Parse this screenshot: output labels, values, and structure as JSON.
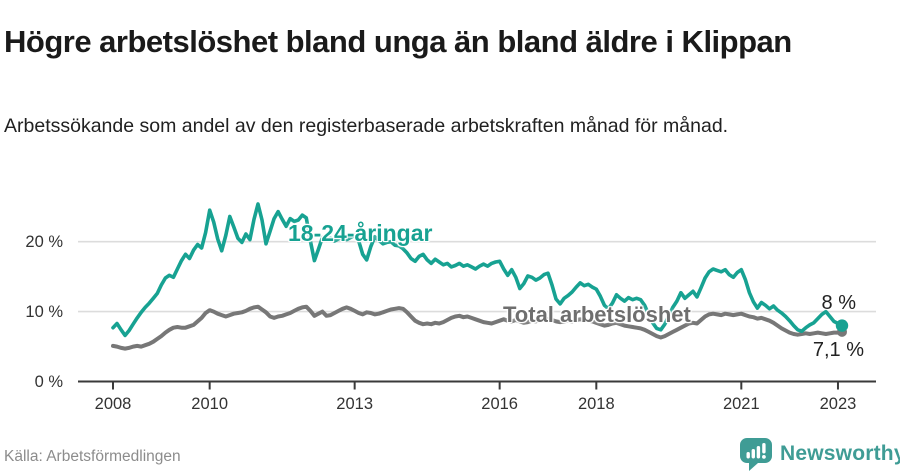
{
  "header": {
    "title": "Högre arbetslöshet bland unga än bland äldre i Klippan",
    "subtitle": "Arbetssökande som andel av den registerbaserade arbetskraften månad för månad."
  },
  "footer": {
    "source": "Källa: Arbetsförmedlingen",
    "brand": "Newsworthy"
  },
  "colors": {
    "young_line": "#17a292",
    "total_line": "#777777",
    "total_label": "#6e6e6e",
    "grid": "#dcdcdc",
    "axis": "#3a3a3a",
    "tick_text": "#333333",
    "title_text": "#1a1a1a",
    "brand_teal": "#3f9c95",
    "source_text": "#8c8c8c"
  },
  "chart_data": {
    "type": "line",
    "title": "Högre arbetslöshet bland unga än bland äldre i Klippan",
    "subtitle": "Arbetssökande som andel av den registerbaserade arbetskraften månad för månad.",
    "x_unit": "month",
    "x_start": "2008-01",
    "x_end": "2023-02",
    "ylim": [
      0,
      27
    ],
    "grid": "horizontal",
    "legend_position": "inline-labels",
    "y_ticks": [
      {
        "value": 0,
        "label": "0 %"
      },
      {
        "value": 10,
        "label": "10 %"
      },
      {
        "value": 20,
        "label": "20 %"
      }
    ],
    "x_ticks": [
      {
        "value": 2008,
        "label": "2008"
      },
      {
        "value": 2010,
        "label": "2010"
      },
      {
        "value": 2013,
        "label": "2013"
      },
      {
        "value": 2016,
        "label": "2016"
      },
      {
        "value": 2018,
        "label": "2018"
      },
      {
        "value": 2021,
        "label": "2021"
      },
      {
        "value": 2023,
        "label": "2023"
      }
    ],
    "series": [
      {
        "name": "18-24-åringar",
        "color": "#17a292",
        "end_label": "8 %",
        "end_value": 8.0,
        "values": [
          7.7,
          8.3,
          7.4,
          6.6,
          7.3,
          8.2,
          9.1,
          9.9,
          10.6,
          11.2,
          11.9,
          12.6,
          13.8,
          14.8,
          15.2,
          14.9,
          16.1,
          17.3,
          18.2,
          17.6,
          18.8,
          19.6,
          19.1,
          21.3,
          24.5,
          22.8,
          20.4,
          18.7,
          20.9,
          23.6,
          22.1,
          20.5,
          19.9,
          21.1,
          20.3,
          23.2,
          25.4,
          23.1,
          19.7,
          21.5,
          23.3,
          24.3,
          23.2,
          22.2,
          23.3,
          22.9,
          23.1,
          23.8,
          23.4,
          20.1,
          17.3,
          18.9,
          20.6,
          20.2,
          20.5,
          20.1,
          20.4,
          20.7,
          20.3,
          20.6,
          20.9,
          20.1,
          18.2,
          17.4,
          19.3,
          20.7,
          20.2,
          19.7,
          19.9,
          20.0,
          19.5,
          19.4,
          19.0,
          18.4,
          17.6,
          17.2,
          17.9,
          18.2,
          17.4,
          16.9,
          17.5,
          17.1,
          16.7,
          16.9,
          16.4,
          16.6,
          16.9,
          16.5,
          16.7,
          16.4,
          16.1,
          16.5,
          16.8,
          16.5,
          16.9,
          17.1,
          17.2,
          16.1,
          15.2,
          16.0,
          14.9,
          13.3,
          14.0,
          15.1,
          14.9,
          14.5,
          14.8,
          15.3,
          15.5,
          13.8,
          11.8,
          11.1,
          11.9,
          12.3,
          12.8,
          13.5,
          14.1,
          13.7,
          13.9,
          13.5,
          13.2,
          12.2,
          10.9,
          10.4,
          11.2,
          12.4,
          11.9,
          11.5,
          12.0,
          11.7,
          11.9,
          11.7,
          10.9,
          9.6,
          8.4,
          7.6,
          7.4,
          8.2,
          9.4,
          10.6,
          11.5,
          12.7,
          11.9,
          12.4,
          12.9,
          12.1,
          13.4,
          14.8,
          15.7,
          16.1,
          15.9,
          15.7,
          16.0,
          15.3,
          14.9,
          15.6,
          16.0,
          14.6,
          12.7,
          11.4,
          10.5,
          11.3,
          10.9,
          10.4,
          10.8,
          10.2,
          9.8,
          9.3,
          8.7,
          8.0,
          7.4,
          7.2,
          7.7,
          8.1,
          8.4,
          9.0,
          9.6,
          10.0,
          9.3,
          8.6,
          8.3,
          8.0
        ]
      },
      {
        "name": "Total arbetslöshet",
        "color": "#777777",
        "end_label": "7,1 %",
        "end_value": 7.1,
        "values": [
          5.1,
          5.0,
          4.8,
          4.7,
          4.8,
          5.0,
          5.1,
          5.0,
          5.2,
          5.4,
          5.7,
          6.1,
          6.5,
          7.0,
          7.4,
          7.7,
          7.8,
          7.7,
          7.7,
          7.9,
          8.1,
          8.6,
          9.1,
          9.8,
          10.2,
          10.0,
          9.7,
          9.5,
          9.3,
          9.5,
          9.7,
          9.8,
          9.9,
          10.1,
          10.4,
          10.6,
          10.7,
          10.3,
          9.9,
          9.3,
          9.1,
          9.3,
          9.4,
          9.6,
          9.8,
          10.1,
          10.4,
          10.6,
          10.7,
          10.1,
          9.4,
          9.7,
          10.0,
          9.4,
          9.5,
          9.8,
          10.1,
          10.4,
          10.6,
          10.4,
          10.1,
          9.8,
          9.6,
          9.9,
          9.8,
          9.6,
          9.7,
          9.9,
          10.1,
          10.3,
          10.4,
          10.5,
          10.4,
          9.9,
          9.3,
          8.7,
          8.4,
          8.2,
          8.3,
          8.2,
          8.4,
          8.3,
          8.5,
          8.8,
          9.1,
          9.3,
          9.4,
          9.2,
          9.3,
          9.1,
          8.9,
          8.7,
          8.5,
          8.4,
          8.3,
          8.5,
          8.7,
          8.9,
          8.7,
          8.6,
          8.8,
          8.6,
          8.4,
          8.5,
          8.7,
          8.6,
          8.8,
          8.9,
          8.9,
          8.8,
          8.6,
          8.5,
          8.6,
          8.7,
          8.6,
          8.8,
          8.9,
          8.8,
          8.7,
          8.6,
          8.4,
          8.2,
          8.0,
          8.1,
          8.3,
          8.4,
          8.2,
          8.0,
          7.9,
          7.8,
          7.7,
          7.6,
          7.4,
          7.1,
          6.8,
          6.5,
          6.3,
          6.5,
          6.8,
          7.1,
          7.4,
          7.7,
          8.0,
          8.3,
          8.4,
          8.3,
          8.8,
          9.3,
          9.6,
          9.7,
          9.6,
          9.5,
          9.7,
          9.6,
          9.5,
          9.6,
          9.7,
          9.5,
          9.3,
          9.2,
          9.0,
          9.1,
          8.9,
          8.7,
          8.4,
          8.0,
          7.6,
          7.3,
          7.0,
          6.8,
          6.7,
          6.8,
          6.9,
          6.8,
          6.9,
          7.0,
          6.9,
          6.8,
          6.9,
          7.0,
          7.0,
          7.1
        ]
      }
    ]
  }
}
